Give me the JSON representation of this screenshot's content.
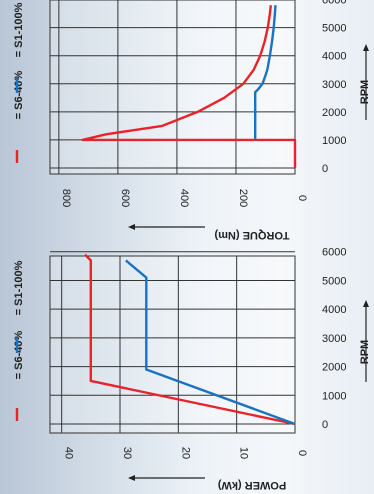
{
  "chart_data": [
    {
      "type": "line",
      "orientation": "rotated-90-cw",
      "xlabel": "RPM",
      "ylabel": "TORQUE (Nm)",
      "x_ticks": [
        0,
        1000,
        2000,
        3000,
        4000,
        5000,
        6000
      ],
      "x_tick_labels": [
        "0",
        "1000",
        "2000",
        "3000",
        "4000",
        "5000",
        "6000"
      ],
      "y_ticks": [
        0,
        200,
        400,
        600,
        800
      ],
      "y_tick_labels": [
        "0",
        "200",
        "400",
        "600",
        "800"
      ],
      "xlim": [
        0,
        6200
      ],
      "ylim": [
        0,
        830
      ],
      "grid": true,
      "legend": "left",
      "series": [
        {
          "name": "= S6-40%",
          "color": "#e8232a",
          "x": [
            0,
            1000,
            1000,
            1200,
            1500,
            2000,
            2500,
            3000,
            3500,
            4000,
            4500,
            5000,
            5500,
            5800
          ],
          "y": [
            0,
            0,
            720,
            640,
            450,
            330,
            240,
            175,
            140,
            118,
            103,
            92,
            85,
            82
          ]
        },
        {
          "name": "= S1-100%",
          "color": "#1b72c2",
          "x": [
            1000,
            2000,
            2700,
            2800,
            3000,
            3300,
            3500,
            4000,
            4500,
            5000,
            5500,
            5800
          ],
          "y": [
            135,
            135,
            135,
            125,
            110,
            100,
            94,
            85,
            78,
            72,
            68,
            66
          ]
        }
      ]
    },
    {
      "type": "line",
      "orientation": "rotated-90-cw",
      "xlabel": "RPM",
      "ylabel": "POWER (kW)",
      "x_ticks": [
        0,
        1000,
        2000,
        3000,
        4000,
        5000,
        6000
      ],
      "x_tick_labels": [
        "0",
        "1000",
        "2000",
        "3000",
        "4000",
        "5000",
        "6000"
      ],
      "y_ticks": [
        0,
        10,
        20,
        30,
        40
      ],
      "y_tick_labels": [
        "0",
        "10",
        "20",
        "30",
        "40"
      ],
      "xlim": [
        0,
        6200
      ],
      "ylim": [
        0,
        42
      ],
      "grid": true,
      "legend": "left",
      "series": [
        {
          "name": "= S6-40%",
          "color": "#e8232a",
          "x": [
            0,
            1500,
            5700,
            5900
          ],
          "y": [
            0,
            35,
            35,
            36
          ]
        },
        {
          "name": "= S1-100%",
          "color": "#1b72c2",
          "x": [
            0,
            1900,
            5100,
            5700
          ],
          "y": [
            0,
            25.5,
            25.5,
            29
          ]
        }
      ]
    }
  ]
}
